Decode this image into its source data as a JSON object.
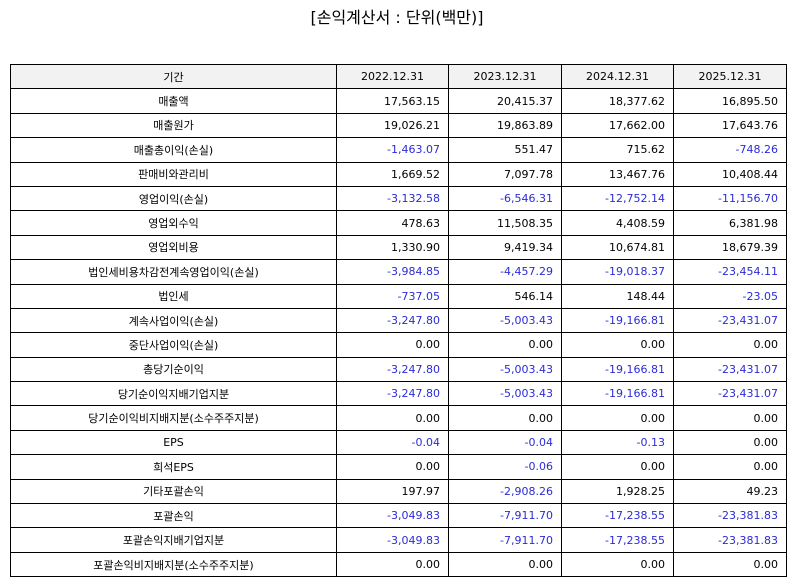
{
  "title": "[손익계산서 : 단위(백만)]",
  "table": {
    "header": [
      "기간",
      "2022.12.31",
      "2023.12.31",
      "2024.12.31",
      "2025.12.31"
    ],
    "rows": [
      [
        "매출액",
        "17,563.15",
        "20,415.37",
        "18,377.62",
        "16,895.50"
      ],
      [
        "매출원가",
        "19,026.21",
        "19,863.89",
        "17,662.00",
        "17,643.76"
      ],
      [
        "매출총이익(손실)",
        "-1,463.07",
        "551.47",
        "715.62",
        "-748.26"
      ],
      [
        "판매비와관리비",
        "1,669.52",
        "7,097.78",
        "13,467.76",
        "10,408.44"
      ],
      [
        "영업이익(손실)",
        "-3,132.58",
        "-6,546.31",
        "-12,752.14",
        "-11,156.70"
      ],
      [
        "영업외수익",
        "478.63",
        "11,508.35",
        "4,408.59",
        "6,381.98"
      ],
      [
        "영업외비용",
        "1,330.90",
        "9,419.34",
        "10,674.81",
        "18,679.39"
      ],
      [
        "법인세비용차감전계속영업이익(손실)",
        "-3,984.85",
        "-4,457.29",
        "-19,018.37",
        "-23,454.11"
      ],
      [
        "법인세",
        "-737.05",
        "546.14",
        "148.44",
        "-23.05"
      ],
      [
        "계속사업이익(손실)",
        "-3,247.80",
        "-5,003.43",
        "-19,166.81",
        "-23,431.07"
      ],
      [
        "중단사업이익(손실)",
        "0.00",
        "0.00",
        "0.00",
        "0.00"
      ],
      [
        "총당기순이익",
        "-3,247.80",
        "-5,003.43",
        "-19,166.81",
        "-23,431.07"
      ],
      [
        "당기순이익지배기업지분",
        "-3,247.80",
        "-5,003.43",
        "-19,166.81",
        "-23,431.07"
      ],
      [
        "당기순이익비지배지분(소수주주지분)",
        "0.00",
        "0.00",
        "0.00",
        "0.00"
      ],
      [
        "EPS",
        "-0.04",
        "-0.04",
        "-0.13",
        "0.00"
      ],
      [
        "희석EPS",
        "0.00",
        "-0.06",
        "0.00",
        "0.00"
      ],
      [
        "기타포괄손익",
        "197.97",
        "-2,908.26",
        "1,928.25",
        "49.23"
      ],
      [
        "포괄손익",
        "-3,049.83",
        "-7,911.70",
        "-17,238.55",
        "-23,381.83"
      ],
      [
        "포괄손익지배기업지분",
        "-3,049.83",
        "-7,911.70",
        "-17,238.55",
        "-23,381.83"
      ],
      [
        "포괄손익비지배지분(소수주주지분)",
        "0.00",
        "0.00",
        "0.00",
        "0.00"
      ]
    ]
  }
}
